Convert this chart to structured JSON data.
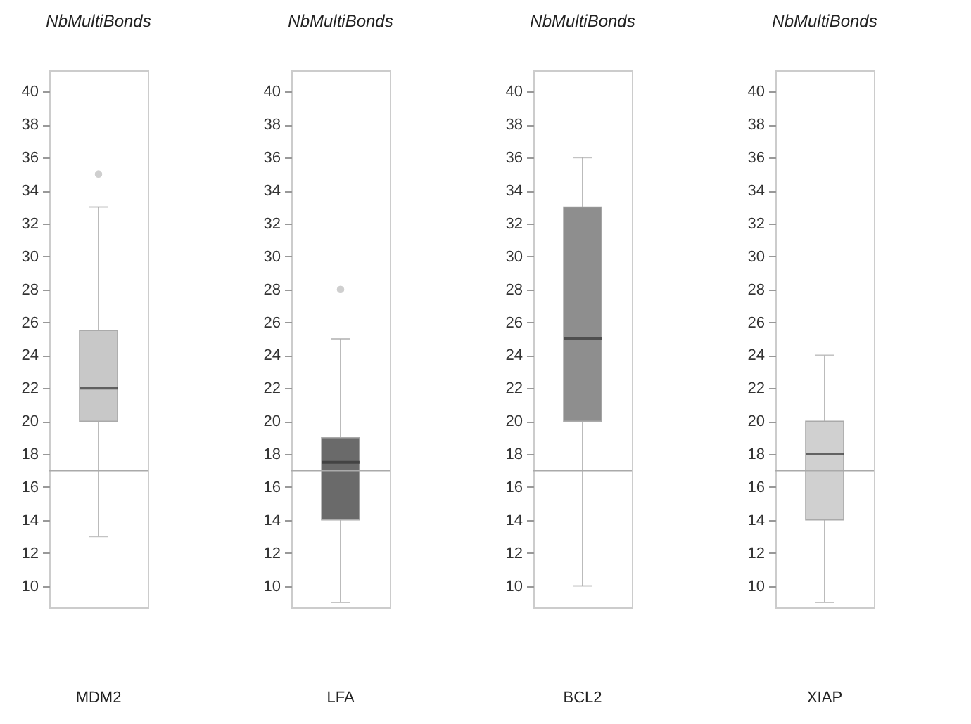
{
  "chart_data": [
    {
      "type": "box",
      "title": "NbMultiBonds",
      "categories": [
        "MDM2"
      ],
      "colors": [
        "#c8c8c8"
      ],
      "ylim": [
        8.7,
        41.3
      ],
      "yticks": [
        10,
        12,
        14,
        16,
        18,
        20,
        22,
        24,
        26,
        28,
        30,
        32,
        34,
        36,
        38,
        40
      ],
      "ref_lines": [
        {
          "axis": "y",
          "value": 17
        }
      ],
      "boxes": [
        {
          "low": 13,
          "q1": 20,
          "median": 22,
          "q3": 25.5,
          "high": 33,
          "outliers": [
            35
          ]
        }
      ]
    },
    {
      "type": "box",
      "title": "NbMultiBonds",
      "categories": [
        "LFA"
      ],
      "colors": [
        "#6a6a6a"
      ],
      "ylim": [
        8.7,
        41.3
      ],
      "yticks": [
        10,
        12,
        14,
        16,
        18,
        20,
        22,
        24,
        26,
        28,
        30,
        32,
        34,
        36,
        38,
        40
      ],
      "ref_lines": [
        {
          "axis": "y",
          "value": 17
        }
      ],
      "boxes": [
        {
          "low": 9,
          "q1": 14,
          "median": 17.5,
          "q3": 19,
          "high": 25,
          "outliers": [
            28
          ]
        }
      ]
    },
    {
      "type": "box",
      "title": "NbMultiBonds",
      "categories": [
        "BCL2"
      ],
      "colors": [
        "#8e8e8e"
      ],
      "ylim": [
        8.7,
        41.3
      ],
      "yticks": [
        10,
        12,
        14,
        16,
        18,
        20,
        22,
        24,
        26,
        28,
        30,
        32,
        34,
        36,
        38,
        40
      ],
      "ref_lines": [
        {
          "axis": "y",
          "value": 17
        }
      ],
      "boxes": [
        {
          "low": 10,
          "q1": 20,
          "median": 25,
          "q3": 33,
          "high": 36
        }
      ]
    },
    {
      "type": "box",
      "title": "NbMultiBonds",
      "categories": [
        "XIAP"
      ],
      "colors": [
        "#d0d0d0"
      ],
      "ylim": [
        8.7,
        41.3
      ],
      "yticks": [
        10,
        12,
        14,
        16,
        18,
        20,
        22,
        24,
        26,
        28,
        30,
        32,
        34,
        36,
        38,
        40
      ],
      "ref_lines": [
        {
          "axis": "y",
          "value": 17
        }
      ],
      "boxes": [
        {
          "low": 9,
          "q1": 14,
          "median": 18,
          "q3": 20,
          "high": 24
        }
      ]
    }
  ]
}
